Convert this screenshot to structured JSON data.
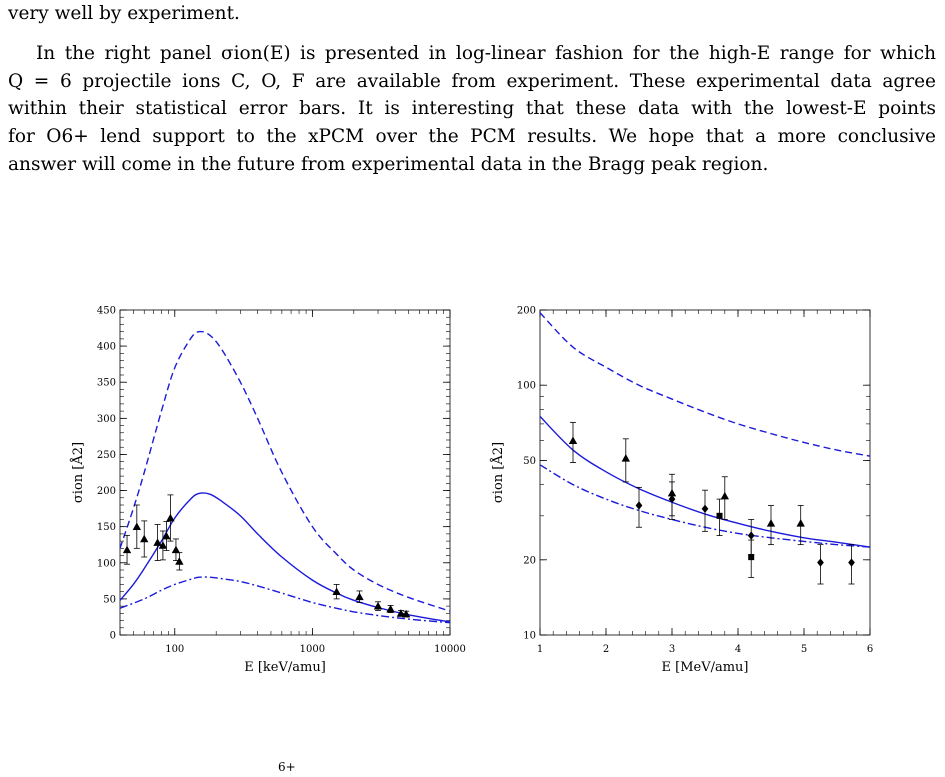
{
  "text": {
    "line0": "very well by experiment.",
    "para_lines": [
      "In the right panel σion(E) is presented in log-linear fashion for the high-E range for which",
      "Q = 6 projectile ions C, O, F are available from experiment. These experimental data agree",
      "within their statistical error bars. It is interesting that these data with the lowest-E points",
      "for O6+ lend support to the xPCM over the PCM results. We hope that a more conclusive",
      "answer will come in the future from experimental data in the Bragg peak region."
    ],
    "caption_fragment": "6+"
  },
  "colors": {
    "curve": "#1a1adb",
    "marker": "#000000"
  },
  "chart_data": [
    {
      "type": "line",
      "xscale": "log",
      "xlim": [
        40,
        10000
      ],
      "ylim": [
        0,
        450
      ],
      "xlabel": "E [keV/amu]",
      "ylabel": "σion [Å2]",
      "xticks": [
        "100",
        "1000",
        "10000"
      ],
      "yticks": [
        "0",
        "50",
        "100",
        "150",
        "200",
        "250",
        "300",
        "350",
        "400",
        "450"
      ],
      "series": [
        {
          "style": "dashed",
          "x": [
            40,
            50,
            60,
            80,
            100,
            130,
            150,
            180,
            220,
            300,
            400,
            600,
            1000,
            1500,
            2000,
            3000,
            5000,
            10000
          ],
          "y": [
            120,
            175,
            225,
            310,
            370,
            410,
            420,
            415,
            395,
            350,
            300,
            225,
            150,
            112,
            90,
            70,
            52,
            33
          ]
        },
        {
          "style": "solid",
          "x": [
            40,
            50,
            60,
            80,
            100,
            130,
            150,
            180,
            220,
            300,
            400,
            600,
            1000,
            1500,
            2000,
            3000,
            5000,
            10000
          ],
          "y": [
            48,
            70,
            92,
            130,
            162,
            188,
            196,
            195,
            185,
            165,
            140,
            108,
            76,
            58,
            48,
            38,
            28,
            18
          ]
        },
        {
          "style": "dashdot",
          "x": [
            40,
            60,
            80,
            100,
            130,
            150,
            180,
            220,
            300,
            400,
            600,
            1000,
            1500,
            2000,
            3000,
            5000,
            10000
          ],
          "y": [
            37,
            50,
            62,
            70,
            77,
            80,
            80,
            78,
            74,
            68,
            58,
            45,
            37,
            32,
            27,
            22,
            17
          ]
        }
      ],
      "points": [
        {
          "marker": "triangle",
          "x": 45,
          "y": 118,
          "err": 20
        },
        {
          "marker": "triangle",
          "x": 53,
          "y": 150,
          "err": 30
        },
        {
          "marker": "triangle",
          "x": 60,
          "y": 133,
          "err": 25
        },
        {
          "marker": "triangle",
          "x": 75,
          "y": 128,
          "err": 25
        },
        {
          "marker": "triangle",
          "x": 82,
          "y": 124,
          "err": 20
        },
        {
          "marker": "triangle",
          "x": 87,
          "y": 137,
          "err": 20
        },
        {
          "marker": "triangle",
          "x": 93,
          "y": 162,
          "err": 32
        },
        {
          "marker": "triangle",
          "x": 102,
          "y": 118,
          "err": 15
        },
        {
          "marker": "triangle",
          "x": 108,
          "y": 102,
          "err": 12
        },
        {
          "marker": "triangle",
          "x": 1500,
          "y": 60,
          "err": 10
        },
        {
          "marker": "triangle",
          "x": 2200,
          "y": 53,
          "err": 8
        },
        {
          "marker": "triangle",
          "x": 3000,
          "y": 40,
          "err": 6
        },
        {
          "marker": "triangle",
          "x": 3700,
          "y": 36,
          "err": 5
        },
        {
          "marker": "triangle",
          "x": 4400,
          "y": 30,
          "err": 4
        },
        {
          "marker": "triangle",
          "x": 4800,
          "y": 29,
          "err": 4
        }
      ]
    },
    {
      "type": "line",
      "yscale": "log",
      "xlim": [
        1,
        6
      ],
      "ylim": [
        10,
        200
      ],
      "xlabel": "E [MeV/amu]",
      "ylabel": "σion [Å2]",
      "xticks": [
        "1",
        "2",
        "3",
        "4",
        "5",
        "6"
      ],
      "yticks": [
        "10",
        "20",
        "50",
        "100",
        "200"
      ],
      "series": [
        {
          "style": "dashed",
          "x": [
            1,
            1.5,
            2,
            2.5,
            3,
            3.5,
            4,
            4.5,
            5,
            5.5,
            6
          ],
          "y": [
            195,
            142,
            118,
            100,
            88,
            78,
            70,
            64,
            59,
            55,
            52
          ]
        },
        {
          "style": "solid",
          "x": [
            1,
            1.5,
            2,
            2.5,
            3,
            3.5,
            4,
            4.5,
            5,
            5.5,
            6
          ],
          "y": [
            75,
            55,
            45,
            38.5,
            34,
            30.5,
            28,
            26,
            24.5,
            23.5,
            22.5
          ]
        },
        {
          "style": "dashdot",
          "x": [
            1,
            1.5,
            2,
            2.5,
            3,
            3.5,
            4,
            4.5,
            5,
            5.5,
            6
          ],
          "y": [
            48,
            40,
            35,
            31.5,
            29,
            27,
            25.5,
            24.5,
            23.7,
            23,
            22.5
          ]
        }
      ],
      "points": [
        {
          "marker": "triangle",
          "x": 1.5,
          "y": 60,
          "err": 11
        },
        {
          "marker": "triangle",
          "x": 2.3,
          "y": 51,
          "err": 10
        },
        {
          "marker": "diamond",
          "x": 2.5,
          "y": 33,
          "err": 6
        },
        {
          "marker": "triangle",
          "x": 3.0,
          "y": 37,
          "err": 7
        },
        {
          "marker": "diamond",
          "x": 3.0,
          "y": 35,
          "err": 6
        },
        {
          "marker": "diamond",
          "x": 3.5,
          "y": 32,
          "err": 6
        },
        {
          "marker": "square",
          "x": 3.72,
          "y": 30,
          "err": 5
        },
        {
          "marker": "triangle",
          "x": 3.8,
          "y": 36,
          "err": 7
        },
        {
          "marker": "diamond",
          "x": 4.2,
          "y": 25,
          "err": 4
        },
        {
          "marker": "square",
          "x": 4.2,
          "y": 20.5,
          "err": 3.5
        },
        {
          "marker": "triangle",
          "x": 4.5,
          "y": 28,
          "err": 5
        },
        {
          "marker": "triangle",
          "x": 4.95,
          "y": 28,
          "err": 5
        },
        {
          "marker": "diamond",
          "x": 5.25,
          "y": 19.5,
          "err": 3.5
        },
        {
          "marker": "diamond",
          "x": 5.72,
          "y": 19.5,
          "err": 3.5
        }
      ]
    }
  ]
}
